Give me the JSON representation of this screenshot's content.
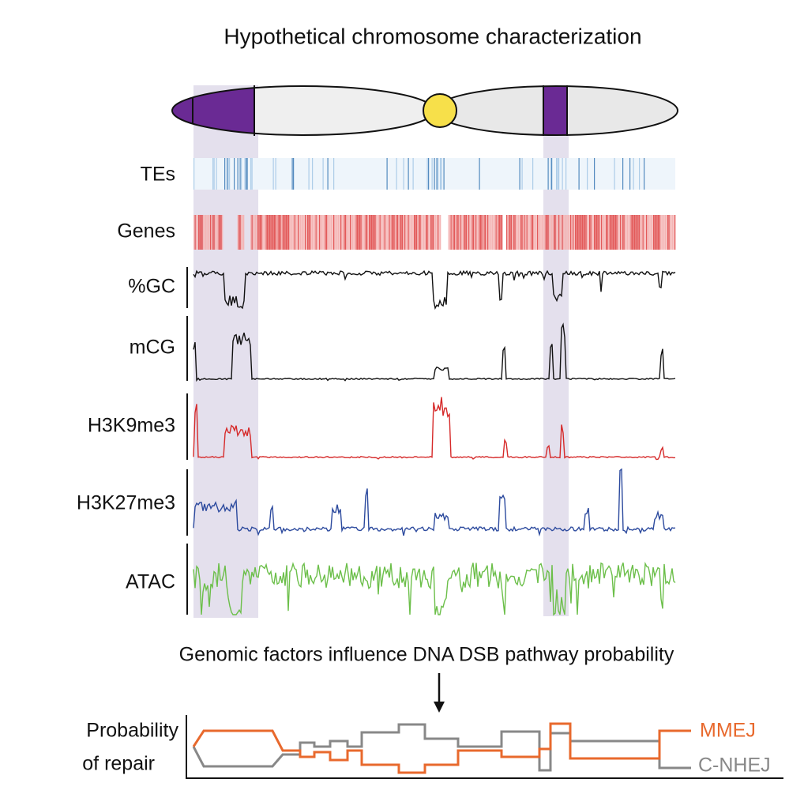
{
  "title": "Hypothetical chromosome characterization",
  "tracks": [
    "TEs",
    "Genes",
    "%GC",
    "mCG",
    "H3K9me3",
    "H3K27me3",
    "ATAC"
  ],
  "caption": "Genomic factors influence DNA DSB pathway probability",
  "repair": {
    "ylabel": [
      "Probability",
      "of repair"
    ],
    "legend": [
      "MMEJ",
      "C-NHEJ"
    ]
  }
}
